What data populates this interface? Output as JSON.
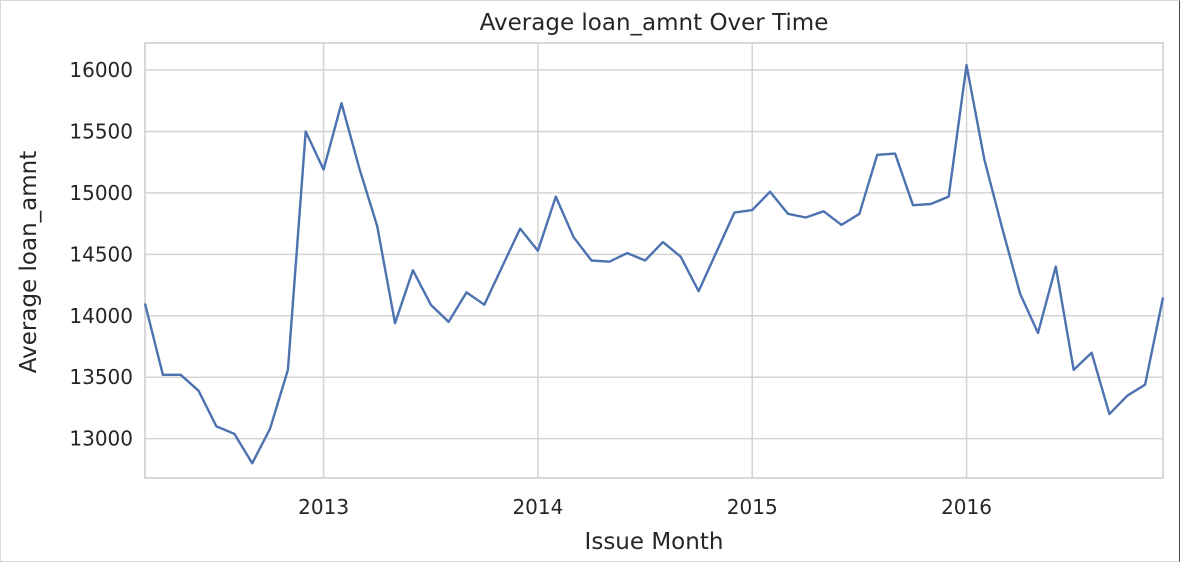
{
  "chart_data": {
    "type": "line",
    "title": "Average loan_amnt Over Time",
    "xlabel": "Issue Month",
    "ylabel": "Average loan_amnt",
    "x_tick_labels": [
      "2013",
      "2014",
      "2015",
      "2016"
    ],
    "y_tick_labels": [
      "13000",
      "13500",
      "14000",
      "14500",
      "15000",
      "15500",
      "16000"
    ],
    "xlim": [
      "2012-03",
      "2016-12"
    ],
    "ylim": [
      12680,
      16220
    ],
    "grid": true,
    "line_color": "#4c72b0",
    "series": [
      {
        "x": [
          "2012-03",
          "2012-04",
          "2012-05",
          "2012-06",
          "2012-07",
          "2012-08",
          "2012-09",
          "2012-10",
          "2012-11",
          "2012-12",
          "2013-01",
          "2013-02",
          "2013-03",
          "2013-04",
          "2013-05",
          "2013-06",
          "2013-07",
          "2013-08",
          "2013-09",
          "2013-10",
          "2013-11",
          "2013-12",
          "2014-01",
          "2014-02",
          "2014-03",
          "2014-04",
          "2014-05",
          "2014-06",
          "2014-07",
          "2014-08",
          "2014-09",
          "2014-10",
          "2014-11",
          "2014-12",
          "2015-01",
          "2015-02",
          "2015-03",
          "2015-04",
          "2015-05",
          "2015-06",
          "2015-07",
          "2015-08",
          "2015-09",
          "2015-10",
          "2015-11",
          "2015-12",
          "2016-01",
          "2016-02",
          "2016-03",
          "2016-04",
          "2016-05",
          "2016-06",
          "2016-07",
          "2016-08",
          "2016-09",
          "2016-10",
          "2016-11",
          "2016-12"
        ],
        "values": [
          14100,
          13520,
          13520,
          13390,
          13100,
          13040,
          12800,
          13080,
          13560,
          15500,
          15190,
          15730,
          15200,
          14730,
          13940,
          14370,
          14090,
          13950,
          14190,
          14090,
          14400,
          14710,
          14530,
          14970,
          14640,
          14450,
          14440,
          14510,
          14450,
          14600,
          14480,
          14200,
          14520,
          14840,
          14860,
          15010,
          14830,
          14800,
          14850,
          14740,
          14830,
          15310,
          15320,
          14900,
          14910,
          14970,
          16040,
          15270,
          14710,
          14180,
          13860,
          14400,
          13560,
          13700,
          13200,
          13350,
          13440,
          14150
        ]
      }
    ]
  }
}
